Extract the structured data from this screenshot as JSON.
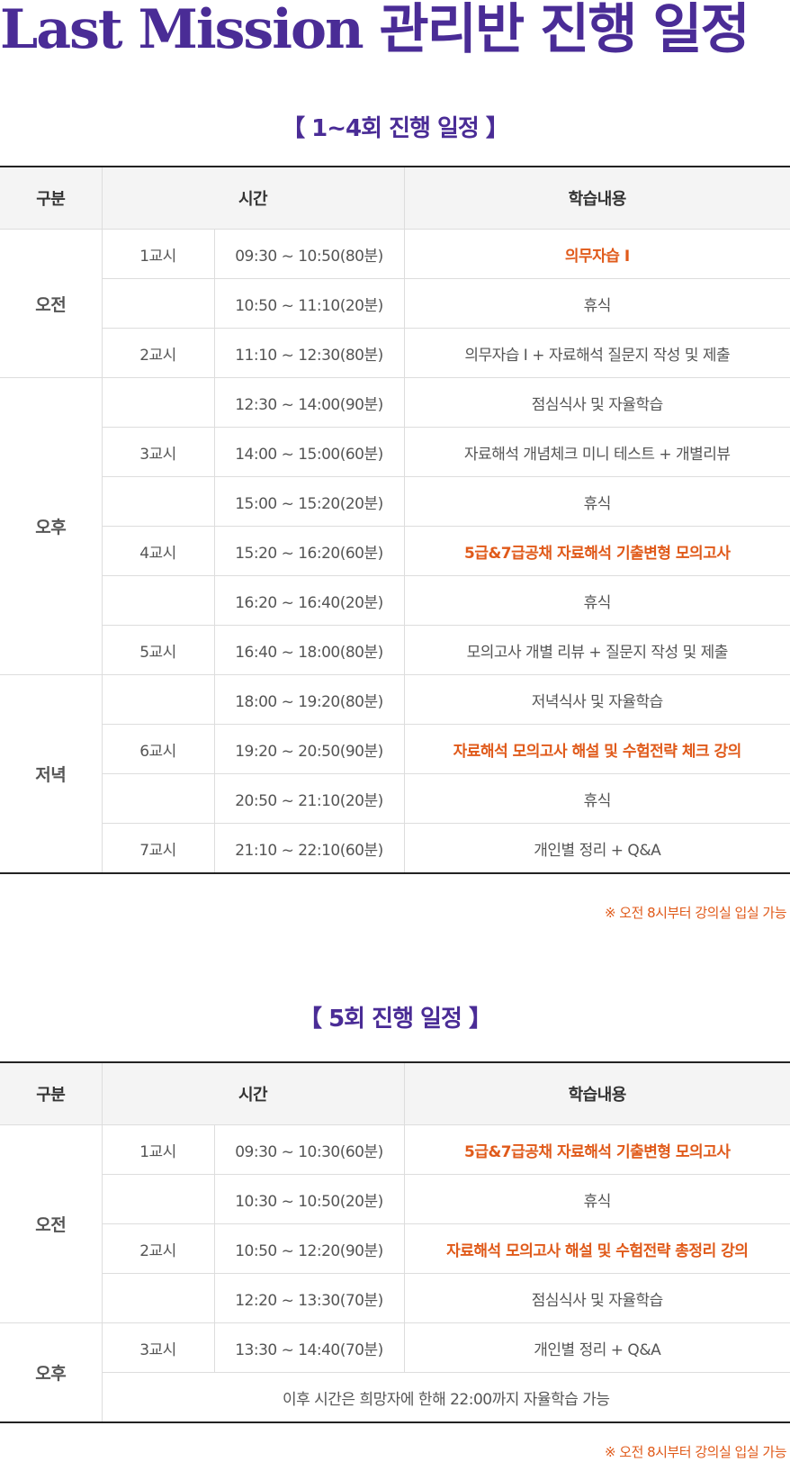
{
  "title_en": "Last Mission",
  "title_ko": "관리반 진행 일정",
  "headers": {
    "category": "구분",
    "time": "시간",
    "content": "학습내용"
  },
  "section1": {
    "title_open": "【",
    "title": "1~4회 진행 일정",
    "title_close": "】",
    "groups": [
      "오전",
      "오후",
      "저녁"
    ],
    "rows": [
      {
        "period": "1교시",
        "time": "09:30 ~ 10:50(80분)",
        "content": "의무자습 Ⅰ"
      },
      {
        "period": "",
        "time": "10:50 ~ 11:10(20분)",
        "content": "휴식"
      },
      {
        "period": "2교시",
        "time": "11:10 ~ 12:30(80분)",
        "content": "의무자습 Ⅰ + 자료해석 질문지 작성 및 제출"
      },
      {
        "period": "",
        "time": "12:30 ~ 14:00(90분)",
        "content": "점심식사 및 자율학습"
      },
      {
        "period": "3교시",
        "time": "14:00 ~ 15:00(60분)",
        "content": "자료해석 개념체크 미니 테스트 + 개별리뷰"
      },
      {
        "period": "",
        "time": "15:00 ~ 15:20(20분)",
        "content": "휴식"
      },
      {
        "period": "4교시",
        "time": "15:20 ~ 16:20(60분)",
        "content": "5급&7급공채 자료해석 기출변형 모의고사"
      },
      {
        "period": "",
        "time": "16:20 ~ 16:40(20분)",
        "content": "휴식"
      },
      {
        "period": "5교시",
        "time": "16:40 ~ 18:00(80분)",
        "content": "모의고사 개별 리뷰 + 질문지 작성 및 제출"
      },
      {
        "period": "",
        "time": "18:00 ~ 19:20(80분)",
        "content": "저녁식사 및 자율학습"
      },
      {
        "period": "6교시",
        "time": "19:20 ~ 20:50(90분)",
        "content": "자료해석 모의고사 해설 및 수험전략 체크 강의"
      },
      {
        "period": "",
        "time": "20:50 ~ 21:10(20분)",
        "content": "휴식"
      },
      {
        "period": "7교시",
        "time": "21:10 ~ 22:10(60분)",
        "content": "개인별 정리 + Q&A"
      }
    ],
    "note": "※ 오전 8시부터 강의실 입실 가능"
  },
  "section2": {
    "title_open": "【",
    "title": "5회 진행 일정",
    "title_close": "】",
    "groups": [
      "오전",
      "오후"
    ],
    "rows": [
      {
        "period": "1교시",
        "time": "09:30 ~ 10:30(60분)",
        "content": "5급&7급공채 자료해석 기출변형 모의고사"
      },
      {
        "period": "",
        "time": "10:30 ~ 10:50(20분)",
        "content": "휴식"
      },
      {
        "period": "2교시",
        "time": "10:50 ~ 12:20(90분)",
        "content": "자료해석 모의고사 해설 및 수험전략 총정리 강의"
      },
      {
        "period": "",
        "time": "12:20 ~ 13:30(70분)",
        "content": "점심식사 및 자율학습"
      },
      {
        "period": "3교시",
        "time": "13:30 ~ 14:40(70분)",
        "content": "개인별 정리 + Q&A"
      }
    ],
    "footer_row": "이후 시간은 희망자에 한해 22:00까지 자율학습 가능",
    "note": "※ 오전 8시부터 강의실 입실 가능"
  },
  "colors": {
    "title": "#4a2c96",
    "highlight": "#e05a1a"
  }
}
